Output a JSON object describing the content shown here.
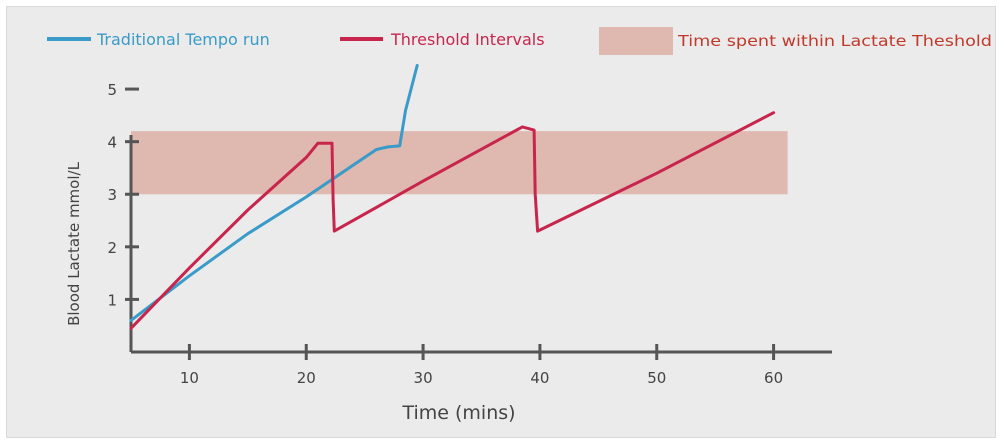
{
  "chart_data": {
    "type": "line",
    "xlabel": "Time (mins)",
    "ylabel": "Blood Lactate mmol/L",
    "xlim": [
      5,
      65
    ],
    "ylim": [
      0,
      5.8
    ],
    "xticks": [
      10,
      20,
      30,
      40,
      50,
      60
    ],
    "yticks": [
      1,
      2,
      3,
      4,
      5
    ],
    "legend_position": "top",
    "band": {
      "name": "Time spent within Lactate Theshold",
      "y_range": [
        3.0,
        4.2
      ],
      "x_range": [
        5,
        61.2
      ],
      "color": "#dfb8b0"
    },
    "series": [
      {
        "name": "Traditional Tempo run",
        "color": "#3a9bc9",
        "x": [
          5,
          10,
          15,
          20,
          22,
          24,
          26,
          27,
          28,
          28.5,
          29.5
        ],
        "y": [
          0.6,
          1.45,
          2.25,
          2.95,
          3.25,
          3.55,
          3.85,
          3.9,
          3.92,
          4.6,
          5.45
        ]
      },
      {
        "name": "Threshold Intervals",
        "color": "#c8254d",
        "x": [
          5,
          10,
          15,
          20,
          21,
          22.2,
          22.3,
          22.4,
          30,
          38.5,
          39.5,
          39.6,
          39.8,
          50,
          60
        ],
        "y": [
          0.45,
          1.6,
          2.7,
          3.7,
          3.97,
          3.97,
          2.9,
          2.3,
          3.25,
          4.28,
          4.22,
          3.0,
          2.3,
          3.4,
          4.55
        ]
      }
    ]
  }
}
